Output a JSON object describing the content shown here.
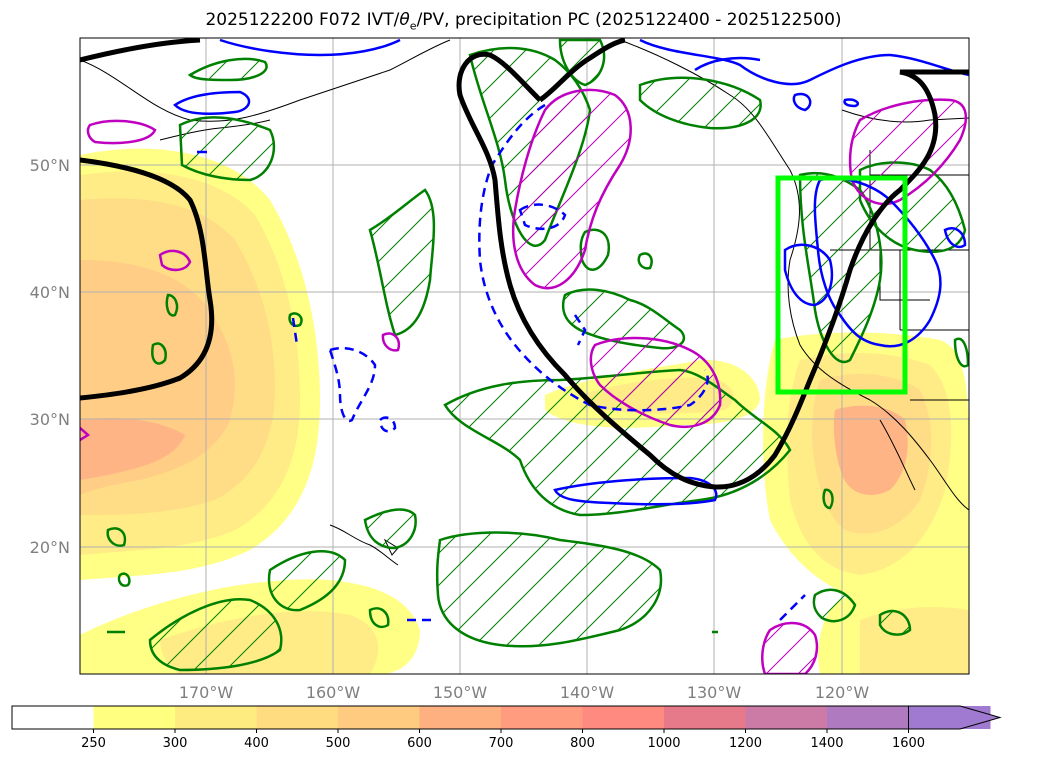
{
  "title": {
    "prefix": "2025122200 F072 IVT/",
    "theta_sym": "θ",
    "theta_sub": "e",
    "suffix": "/PV, precipitation PC (2025122400 - 2025122500)"
  },
  "lat_labels": [
    "50°N",
    "40°N",
    "30°N",
    "20°N"
  ],
  "lon_labels": [
    "170°W",
    "160°W",
    "150°W",
    "140°W",
    "130°W",
    "120°W"
  ],
  "colorbar": {
    "ticks": [
      "250",
      "300",
      "400",
      "500",
      "600",
      "700",
      "800",
      "1000",
      "1200",
      "1400",
      "1600"
    ],
    "colors": [
      "#ffffff",
      "#ffff80",
      "#ffec80",
      "#ffdc80",
      "#ffcb80",
      "#ffb080",
      "#ff9c80",
      "#ff8a80",
      "#e67a8a",
      "#cc7aa6",
      "#b07ac0",
      "#a07ad0"
    ]
  },
  "highlight_box": {
    "lon_min": -125,
    "lon_max": -115,
    "lat_min": 32,
    "lat_max": 49,
    "color": "#00ff00"
  },
  "legend_colors": {
    "pv_contour": "#000000",
    "theta_e_contour": "#0000ff",
    "precip_positive": "#008000",
    "precip_negative": "#c000c0"
  }
}
